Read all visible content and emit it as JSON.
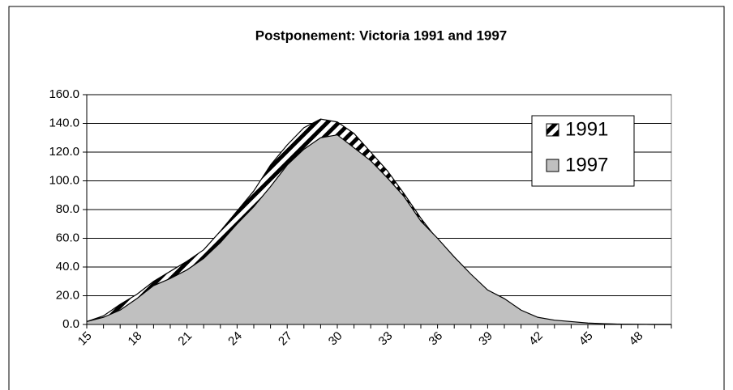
{
  "chart_data": {
    "type": "area",
    "title": "Postponement: Victoria 1991 and 1997",
    "categories": [
      15,
      null,
      null,
      18,
      null,
      null,
      21,
      null,
      null,
      24,
      null,
      null,
      27,
      null,
      null,
      30,
      null,
      null,
      33,
      null,
      null,
      36,
      null,
      null,
      39,
      null,
      null,
      42,
      null,
      null,
      45,
      null,
      null,
      48,
      null,
      null
    ],
    "series": [
      {
        "name": "1991",
        "color": "#000000",
        "pattern": "hatch",
        "values": [
          2,
          6,
          14,
          21,
          30,
          37,
          44,
          52,
          65,
          79,
          93,
          111,
          125,
          137,
          143,
          141,
          133,
          120,
          107,
          91,
          74,
          59,
          46,
          34,
          23,
          16,
          9,
          4.5,
          2.5,
          1.5,
          0.8,
          0.4,
          0.2,
          0.1,
          0,
          0
        ]
      },
      {
        "name": "1997",
        "color": "#c0c0c0",
        "pattern": "solid",
        "values": [
          2,
          5,
          10,
          18,
          27,
          32,
          38,
          46,
          57,
          70,
          82,
          96,
          111,
          122,
          130,
          132,
          123,
          114,
          102,
          89,
          72,
          60,
          47,
          35,
          24,
          18,
          10,
          5,
          3,
          2,
          1,
          0.5,
          0.2,
          0.1,
          0,
          0
        ]
      }
    ],
    "ylim": [
      0,
      160
    ],
    "yticks": [
      {
        "value": 0,
        "label": "0.0"
      },
      {
        "value": 20,
        "label": "20.0"
      },
      {
        "value": 40,
        "label": "40.0"
      },
      {
        "value": 60,
        "label": "60.0"
      },
      {
        "value": 80,
        "label": "80.0"
      },
      {
        "value": 100,
        "label": "100.0"
      },
      {
        "value": 120,
        "label": "120.0"
      },
      {
        "value": 140,
        "label": "140.0"
      },
      {
        "value": 160,
        "label": "160.0"
      }
    ],
    "grid": true,
    "legend": "right"
  }
}
